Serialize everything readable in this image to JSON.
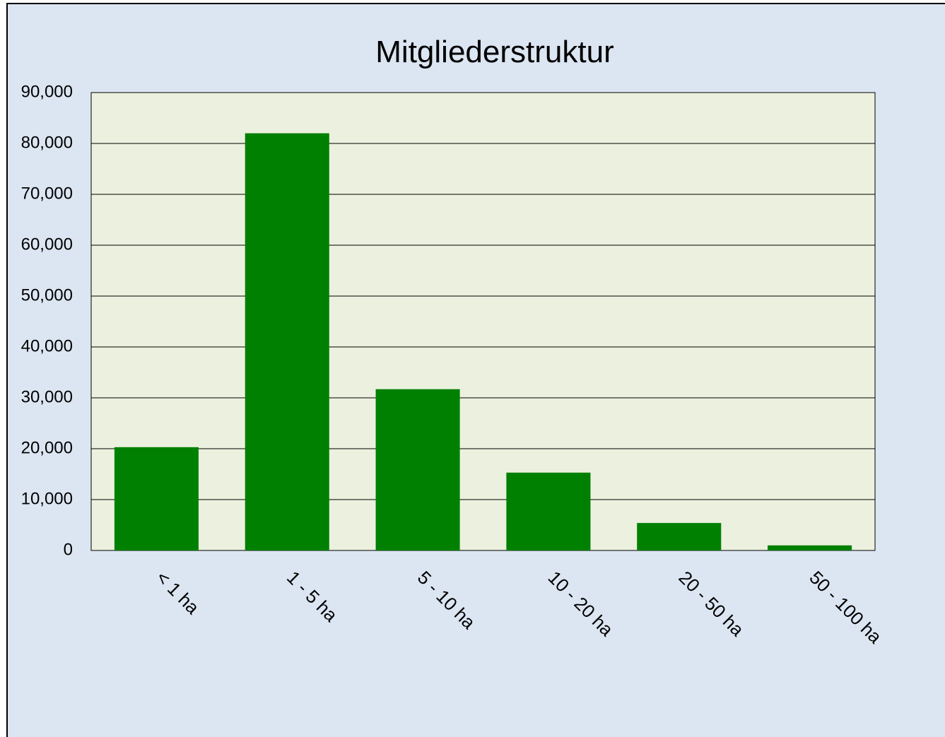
{
  "chart_data": {
    "type": "bar",
    "title": "Mitgliederstruktur",
    "categories": [
      "< 1 ha",
      "1 - 5 ha",
      "5 - 10 ha",
      "10 - 20 ha",
      "20 - 50 ha",
      "50 - 100 ha"
    ],
    "values": [
      20300,
      82000,
      31700,
      15300,
      5400,
      1000
    ],
    "color": "#008000",
    "ylim": [
      0,
      90000
    ],
    "yticks": [
      0,
      {
        "value": 10000,
        "label": "10,000"
      },
      {
        "value": 20000,
        "label": "20,000"
      },
      {
        "value": 30000,
        "label": "30,000"
      },
      {
        "value": 40000,
        "label": "40,000"
      },
      {
        "value": 50000,
        "label": "50,000"
      },
      {
        "value": 60000,
        "label": "60,000"
      },
      {
        "value": 70000,
        "label": "70,000"
      },
      {
        "value": 80000,
        "label": "80,000"
      },
      {
        "value": 90000,
        "label": "90,000"
      }
    ],
    "grid": true
  }
}
